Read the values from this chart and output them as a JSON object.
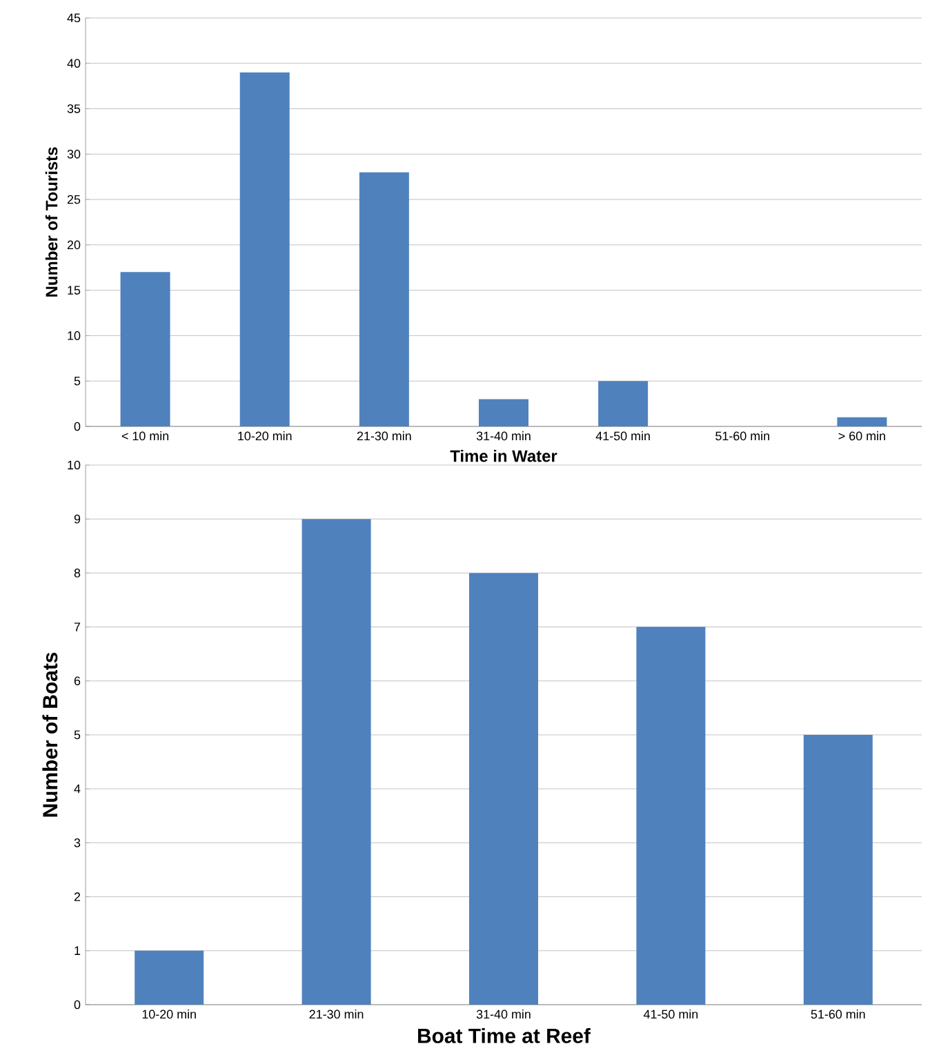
{
  "chart_data": [
    {
      "type": "bar",
      "xlabel": "Time in Water",
      "ylabel": "Number of Tourists",
      "categories": [
        "< 10 min",
        "10-20 min",
        "21-30 min",
        "31-40 min",
        "41-50 min",
        "51-60 min",
        "> 60 min"
      ],
      "values": [
        17,
        39,
        28,
        3,
        5,
        0,
        1
      ],
      "color": "#4f81bd",
      "ylim": [
        0,
        45
      ],
      "yticks": [
        0,
        5,
        10,
        15,
        20,
        25,
        30,
        35,
        40,
        45
      ],
      "grid": "y"
    },
    {
      "type": "bar",
      "xlabel": "Boat Time at Reef",
      "ylabel": "Number of Boats",
      "categories": [
        "10-20 min",
        "21-30 min",
        "31-40 min",
        "41-50 min",
        "51-60 min"
      ],
      "values": [
        1,
        9,
        8,
        7,
        5
      ],
      "color": "#4f81bd",
      "ylim": [
        0,
        10
      ],
      "yticks": [
        0,
        1,
        2,
        3,
        4,
        5,
        6,
        7,
        8,
        9,
        10
      ],
      "grid": "y"
    }
  ]
}
